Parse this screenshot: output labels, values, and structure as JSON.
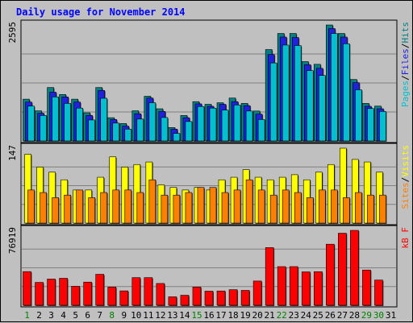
{
  "chart_data": {
    "type": "bar",
    "title": "Daily usage for November 2014",
    "categories": [
      "1",
      "2",
      "3",
      "4",
      "5",
      "6",
      "7",
      "8",
      "9",
      "10",
      "11",
      "12",
      "13",
      "14",
      "15",
      "16",
      "17",
      "18",
      "19",
      "20",
      "21",
      "22",
      "23",
      "24",
      "25",
      "26",
      "27",
      "28",
      "29",
      "30",
      "31"
    ],
    "weekend_days": [
      "1",
      "8",
      "15",
      "22",
      "29",
      "30"
    ],
    "panels": [
      {
        "id": "top",
        "max_label": "2595",
        "ymax": 2595,
        "legend": [
          {
            "text": "Pages",
            "color": "#00c0d0"
          },
          {
            "text": "/",
            "color": "#000000"
          },
          {
            "text": "Files",
            "color": "#2020e0"
          },
          {
            "text": "/",
            "color": "#000000"
          },
          {
            "text": "Hits",
            "color": "#008080"
          }
        ],
        "series": [
          {
            "name": "Hits",
            "color": "#008080",
            "values": [
              935,
              675,
              1195,
              1040,
              935,
              630,
              1195,
              520,
              390,
              675,
              1000,
              720,
              300,
              570,
              880,
              820,
              855,
              960,
              840,
              670,
              2045,
              2405,
              2405,
              1775,
              1715,
              2595,
              2405,
              1375,
              840,
              780,
              0
            ]
          },
          {
            "name": "Files",
            "color": "#2020e0",
            "values": [
              870,
              620,
              1090,
              985,
              870,
              570,
              1130,
              480,
              330,
              610,
              960,
              660,
              265,
              520,
              830,
              775,
              820,
              880,
              790,
              600,
              1935,
              2325,
              2315,
              1705,
              1625,
              2515,
              2325,
              1305,
              775,
              720,
              0
            ]
          },
          {
            "name": "Pages",
            "color": "#00c0d0",
            "values": [
              780,
              570,
              985,
              840,
              735,
              470,
              955,
              400,
              265,
              490,
              855,
              525,
              170,
              435,
              770,
              735,
              690,
              805,
              670,
              480,
              1745,
              2145,
              2135,
              1575,
              1465,
              2405,
              2175,
              1145,
              725,
              660,
              0
            ]
          }
        ]
      },
      {
        "id": "mid",
        "max_label": "147",
        "ymax": 147,
        "legend": [
          {
            "text": "Sites",
            "color": "#ff8000"
          },
          {
            "text": "/",
            "color": "#000000"
          },
          {
            "text": "Visits",
            "color": "#ffff00"
          }
        ],
        "series": [
          {
            "name": "Visits",
            "color": "#ffff00",
            "values": [
              135,
              110,
              100,
              85,
              65,
              65,
              90,
              130,
              110,
              115,
              120,
              75,
              70,
              65,
              70,
              65,
              85,
              90,
              105,
              90,
              85,
              90,
              95,
              85,
              100,
              115,
              147,
              125,
              120,
              100,
              0
            ]
          },
          {
            "name": "Sites",
            "color": "#ff8000",
            "values": [
              65,
              60,
              50,
              55,
              65,
              50,
              60,
              65,
              65,
              60,
              85,
              55,
              55,
              60,
              70,
              70,
              60,
              65,
              85,
              65,
              55,
              65,
              60,
              50,
              65,
              65,
              50,
              60,
              55,
              55,
              0
            ]
          }
        ]
      },
      {
        "id": "bot",
        "max_label": "76919",
        "ymax": 76919,
        "legend": [
          {
            "text": "KBytes",
            "color": "#ff0000"
          }
        ],
        "legend_display": "kB F",
        "series": [
          {
            "name": "KBytes",
            "color": "#ff0000",
            "values": [
              34600,
              23500,
              26900,
              27700,
              19500,
              23800,
              31800,
              18700,
              14800,
              28400,
              28400,
              22400,
              8700,
              10300,
              18700,
              14500,
              14700,
              16000,
              15300,
              24900,
              59200,
              39700,
              39700,
              34300,
              34500,
              62700,
              74000,
              76919,
              36200,
              25900,
              0
            ]
          }
        ]
      }
    ]
  }
}
